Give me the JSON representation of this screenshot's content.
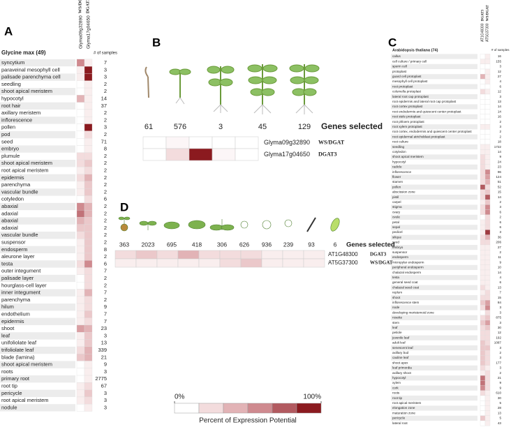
{
  "legend": {
    "ticks": [
      {
        "value": 0,
        "label": "0%"
      },
      {
        "value": 100,
        "label": "100%"
      }
    ],
    "title": "Percent of Expression Potential",
    "colors": [
      "#ffffff",
      "#f3dcdd",
      "#e2b3b6",
      "#cf8a8f",
      "#b25a60",
      "#8b1a1f"
    ]
  },
  "panel_a": {
    "label": "A",
    "title": "Glycine max (49)",
    "samples_header": "# of samples",
    "columns": [
      {
        "gene": "Glyma09g32890",
        "name": "WS/DGAT"
      },
      {
        "gene": "Glyma17g04650",
        "name": "DGAT3"
      }
    ],
    "rows": [
      {
        "tissue": "syncytium",
        "samples": 7,
        "values": [
          60,
          10
        ]
      },
      {
        "tissue": "paraveinal mesophyll cell",
        "samples": 3,
        "values": [
          10,
          100
        ]
      },
      {
        "tissue": "palisade parenchyma cell",
        "samples": 3,
        "values": [
          10,
          100
        ]
      },
      {
        "tissue": "seedling",
        "samples": 2,
        "values": [
          0,
          10
        ]
      },
      {
        "tissue": "shoot apical meristem",
        "samples": 2,
        "values": [
          0,
          10
        ]
      },
      {
        "tissue": "hypocotyl",
        "samples": 14,
        "values": [
          40,
          10
        ]
      },
      {
        "tissue": "root hair",
        "samples": 37,
        "values": [
          0,
          10
        ]
      },
      {
        "tissue": "axillary meristem",
        "samples": 2,
        "values": [
          0,
          10
        ]
      },
      {
        "tissue": "inflorescence",
        "samples": 2,
        "values": [
          0,
          10
        ]
      },
      {
        "tissue": "pollen",
        "samples": 3,
        "values": [
          0,
          100
        ]
      },
      {
        "tissue": "pod",
        "samples": 2,
        "values": [
          0,
          20
        ]
      },
      {
        "tissue": "seed",
        "samples": 71,
        "values": [
          0,
          10
        ]
      },
      {
        "tissue": "embryo",
        "samples": 8,
        "values": [
          0,
          10
        ]
      },
      {
        "tissue": "plumule",
        "samples": 2,
        "values": [
          20,
          20
        ]
      },
      {
        "tissue": "shoot apical meristem",
        "samples": 2,
        "values": [
          20,
          30
        ]
      },
      {
        "tissue": "root apical meristem",
        "samples": 2,
        "values": [
          10,
          20
        ]
      },
      {
        "tissue": "epidermis",
        "samples": 2,
        "values": [
          20,
          40
        ]
      },
      {
        "tissue": "parenchyma",
        "samples": 2,
        "values": [
          10,
          30
        ]
      },
      {
        "tissue": "vascular bundle",
        "samples": 2,
        "values": [
          10,
          30
        ]
      },
      {
        "tissue": "cotyledon",
        "samples": 6,
        "values": [
          0,
          20
        ]
      },
      {
        "tissue": "abaxial",
        "samples": 2,
        "values": [
          60,
          40
        ]
      },
      {
        "tissue": "adaxial",
        "samples": 2,
        "values": [
          70,
          40
        ]
      },
      {
        "tissue": "abaxial",
        "samples": 2,
        "values": [
          40,
          30
        ]
      },
      {
        "tissue": "adaxial",
        "samples": 2,
        "values": [
          30,
          30
        ]
      },
      {
        "tissue": "vascular bundle",
        "samples": 2,
        "values": [
          20,
          30
        ]
      },
      {
        "tissue": "suspensor",
        "samples": 2,
        "values": [
          10,
          30
        ]
      },
      {
        "tissue": "endosperm",
        "samples": 8,
        "values": [
          10,
          30
        ]
      },
      {
        "tissue": "aleurone layer",
        "samples": 2,
        "values": [
          10,
          30
        ]
      },
      {
        "tissue": "testa",
        "samples": 6,
        "values": [
          20,
          60
        ]
      },
      {
        "tissue": "outer integument",
        "samples": 7,
        "values": [
          10,
          20
        ]
      },
      {
        "tissue": "palisade layer",
        "samples": 2,
        "values": [
          0,
          20
        ]
      },
      {
        "tissue": "hourglass-cell layer",
        "samples": 2,
        "values": [
          0,
          20
        ]
      },
      {
        "tissue": "inner integument",
        "samples": 7,
        "values": [
          10,
          40
        ]
      },
      {
        "tissue": "parenchyma",
        "samples": 2,
        "values": [
          10,
          20
        ]
      },
      {
        "tissue": "hilum",
        "samples": 9,
        "values": [
          10,
          20
        ]
      },
      {
        "tissue": "endothelium",
        "samples": 7,
        "values": [
          10,
          30
        ]
      },
      {
        "tissue": "epidermis",
        "samples": 7,
        "values": [
          10,
          20
        ]
      },
      {
        "tissue": "shoot",
        "samples": 23,
        "values": [
          50,
          40
        ]
      },
      {
        "tissue": "leaf",
        "samples": 3,
        "values": [
          10,
          30
        ]
      },
      {
        "tissue": "unifoliolate leaf",
        "samples": 13,
        "values": [
          10,
          30
        ]
      },
      {
        "tissue": "trifoliolate leaf",
        "samples": 339,
        "values": [
          20,
          40
        ]
      },
      {
        "tissue": "blade (lamina)",
        "samples": 21,
        "values": [
          30,
          40
        ]
      },
      {
        "tissue": "shoot apical meristem",
        "samples": 9,
        "values": [
          0,
          10
        ]
      },
      {
        "tissue": "roots",
        "samples": 3,
        "values": [
          0,
          10
        ]
      },
      {
        "tissue": "primary root",
        "samples": 2775,
        "values": [
          0,
          10
        ]
      },
      {
        "tissue": "root tip",
        "samples": 67,
        "values": [
          10,
          20
        ]
      },
      {
        "tissue": "pericycle",
        "samples": 3,
        "values": [
          10,
          30
        ]
      },
      {
        "tissue": "root apical meristem",
        "samples": 3,
        "values": [
          10,
          20
        ]
      },
      {
        "tissue": "nodule",
        "samples": 3,
        "values": [
          0,
          10
        ]
      }
    ]
  },
  "panel_b": {
    "label": "B",
    "genes_selected_label": "Genes selected",
    "genes_selected": [
      61,
      576,
      3,
      45,
      129
    ],
    "rows": [
      {
        "gene": "Glyma09g32890",
        "name": "WS/DGAT",
        "values": [
          0,
          5,
          0,
          0,
          0
        ]
      },
      {
        "gene": "Glyma17g04650",
        "name": "DGAT3",
        "values": [
          0,
          20,
          100,
          5,
          0
        ]
      }
    ]
  },
  "panel_d": {
    "label": "D",
    "genes_selected_label": "Genes selected",
    "genes_selected": [
      363,
      2023,
      695,
      418,
      306,
      626,
      936,
      239,
      93,
      6
    ],
    "rows": [
      {
        "gene": "AT1G48300",
        "name": "DGAT3",
        "values": [
          20,
          30,
          20,
          40,
          20,
          20,
          20,
          10,
          10,
          10
        ]
      },
      {
        "gene": "AT5G37300",
        "name": "WS/DGAT",
        "values": [
          10,
          10,
          10,
          10,
          10,
          20,
          30,
          10,
          10,
          10
        ]
      }
    ]
  },
  "panel_c": {
    "label": "C",
    "title": "Arabidopsis thaliana (74)",
    "samples_header": "# of samples",
    "columns": [
      {
        "gene": "AT1G48300",
        "name": "DGAT3"
      },
      {
        "gene": "AT5G37300",
        "name": "WS/DGAT"
      }
    ],
    "rows": [
      {
        "tissue": "callus",
        "samples": 16,
        "values": [
          0,
          10
        ]
      },
      {
        "tissue": "cell culture / primary cell",
        "samples": 155,
        "values": [
          10,
          10
        ]
      },
      {
        "tissue": "sperm cell",
        "samples": 3,
        "values": [
          0,
          0
        ]
      },
      {
        "tissue": "protoplast",
        "samples": 12,
        "values": [
          0,
          10
        ]
      },
      {
        "tissue": "guard cell protoplast",
        "samples": 27,
        "values": [
          40,
          10
        ]
      },
      {
        "tissue": "mesophyll cell protoplast",
        "samples": 4,
        "values": [
          0,
          10
        ]
      },
      {
        "tissue": "root protoplast",
        "samples": 6,
        "values": [
          0,
          0
        ]
      },
      {
        "tissue": "columella protoplast",
        "samples": 12,
        "values": [
          20,
          10
        ]
      },
      {
        "tissue": "lateral root cap protoplast",
        "samples": 3,
        "values": [
          0,
          0
        ]
      },
      {
        "tissue": "root epidermis and lateral root cap protoplast",
        "samples": 13,
        "values": [
          0,
          0
        ]
      },
      {
        "tissue": "root cortex protoplast",
        "samples": 14,
        "values": [
          0,
          0
        ]
      },
      {
        "tissue": "root endodermis and quiescent center protoplast",
        "samples": 14,
        "values": [
          0,
          0
        ]
      },
      {
        "tissue": "root stele protoplast",
        "samples": 16,
        "values": [
          0,
          0
        ]
      },
      {
        "tissue": "root phloem protoplast",
        "samples": 2,
        "values": [
          0,
          0
        ]
      },
      {
        "tissue": "root xylem protoplast",
        "samples": 3,
        "values": [
          10,
          10
        ]
      },
      {
        "tissue": "root cortex, endodermis and quiescent center protoplast",
        "samples": 2,
        "values": [
          0,
          0
        ]
      },
      {
        "tissue": "root epidermal atrichoblast protoplast",
        "samples": 2,
        "values": [
          0,
          0
        ]
      },
      {
        "tissue": "root culture",
        "samples": 18,
        "values": [
          0,
          0
        ]
      },
      {
        "tissue": "seedling",
        "samples": 1722,
        "values": [
          10,
          10
        ]
      },
      {
        "tissue": "cotyledon",
        "samples": 14,
        "values": [
          10,
          10
        ]
      },
      {
        "tissue": "shoot apical meristem",
        "samples": 9,
        "values": [
          20,
          10
        ]
      },
      {
        "tissue": "hypocotyl",
        "samples": 24,
        "values": [
          20,
          10
        ]
      },
      {
        "tissue": "radicle",
        "samples": 23,
        "values": [
          20,
          10
        ]
      },
      {
        "tissue": "inflorescence",
        "samples": 96,
        "values": [
          20,
          60
        ]
      },
      {
        "tissue": "flower",
        "samples": 124,
        "values": [
          20,
          50
        ]
      },
      {
        "tissue": "stamen",
        "samples": 51,
        "values": [
          20,
          40
        ]
      },
      {
        "tissue": "pollen",
        "samples": 52,
        "values": [
          80,
          20
        ]
      },
      {
        "tissue": "abscission zone",
        "samples": 15,
        "values": [
          20,
          30
        ]
      },
      {
        "tissue": "pistil",
        "samples": 14,
        "values": [
          20,
          80
        ]
      },
      {
        "tissue": "carpel",
        "samples": 2,
        "values": [
          10,
          30
        ]
      },
      {
        "tissue": "stigma",
        "samples": 3,
        "values": [
          20,
          60
        ]
      },
      {
        "tissue": "ovary",
        "samples": 6,
        "values": [
          20,
          60
        ]
      },
      {
        "tissue": "ovule",
        "samples": 2,
        "values": [
          0,
          20
        ]
      },
      {
        "tissue": "petal",
        "samples": 6,
        "values": [
          10,
          20
        ]
      },
      {
        "tissue": "sepal",
        "samples": 6,
        "values": [
          10,
          20
        ]
      },
      {
        "tissue": "pedicel",
        "samples": 3,
        "values": [
          10,
          90
        ]
      },
      {
        "tissue": "silique",
        "samples": 36,
        "values": [
          20,
          40
        ]
      },
      {
        "tissue": "seed",
        "samples": 206,
        "values": [
          20,
          20
        ]
      },
      {
        "tissue": "embryo",
        "samples": 27,
        "values": [
          10,
          10
        ]
      },
      {
        "tissue": "suspensor",
        "samples": 2,
        "values": [
          10,
          10
        ]
      },
      {
        "tissue": "endosperm",
        "samples": 11,
        "values": [
          10,
          10
        ]
      },
      {
        "tissue": "micropylar endosperm",
        "samples": 9,
        "values": [
          10,
          10
        ]
      },
      {
        "tissue": "peripheral endosperm",
        "samples": 10,
        "values": [
          10,
          10
        ]
      },
      {
        "tissue": "chalazal endosperm",
        "samples": 14,
        "values": [
          10,
          10
        ]
      },
      {
        "tissue": "testa",
        "samples": 4,
        "values": [
          10,
          10
        ]
      },
      {
        "tissue": "general seed coat",
        "samples": 6,
        "values": [
          10,
          10
        ]
      },
      {
        "tissue": "chalazal seed coat",
        "samples": 13,
        "values": [
          20,
          10
        ]
      },
      {
        "tissue": "replum",
        "samples": 7,
        "values": [
          10,
          20
        ]
      },
      {
        "tissue": "shoot",
        "samples": 15,
        "values": [
          20,
          20
        ]
      },
      {
        "tissue": "inflorescence stem",
        "samples": 84,
        "values": [
          30,
          50
        ]
      },
      {
        "tissue": "node",
        "samples": 3,
        "values": [
          20,
          60
        ]
      },
      {
        "tissue": "developing meristemoid zone",
        "samples": 3,
        "values": [
          0,
          20
        ]
      },
      {
        "tissue": "rosette",
        "samples": 875,
        "values": [
          20,
          30
        ]
      },
      {
        "tissue": "stem",
        "samples": 3,
        "values": [
          30,
          50
        ]
      },
      {
        "tissue": "leaf",
        "samples": 30,
        "values": [
          20,
          30
        ]
      },
      {
        "tissue": "petiole",
        "samples": 12,
        "values": [
          20,
          20
        ]
      },
      {
        "tissue": "juvenile leaf",
        "samples": 192,
        "values": [
          20,
          20
        ]
      },
      {
        "tissue": "adult leaf",
        "samples": 1087,
        "values": [
          30,
          20
        ]
      },
      {
        "tissue": "senescent leaf",
        "samples": 3,
        "values": [
          30,
          30
        ]
      },
      {
        "tissue": "axillary bud",
        "samples": 2,
        "values": [
          30,
          20
        ]
      },
      {
        "tissue": "cauline leaf",
        "samples": 3,
        "values": [
          30,
          20
        ]
      },
      {
        "tissue": "shoot apex",
        "samples": 177,
        "values": [
          30,
          20
        ]
      },
      {
        "tissue": "leaf primordia",
        "samples": 3,
        "values": [
          20,
          10
        ]
      },
      {
        "tissue": "axillary shoot",
        "samples": 2,
        "values": [
          10,
          20
        ]
      },
      {
        "tissue": "hypocotyl",
        "samples": 21,
        "values": [
          70,
          20
        ]
      },
      {
        "tissue": "xylem",
        "samples": 9,
        "values": [
          70,
          20
        ]
      },
      {
        "tissue": "cork",
        "samples": 9,
        "values": [
          60,
          20
        ]
      },
      {
        "tissue": "roots",
        "samples": 610,
        "values": [
          20,
          10
        ]
      },
      {
        "tissue": "root tip",
        "samples": 30,
        "values": [
          0,
          10
        ]
      },
      {
        "tissue": "root apical meristem",
        "samples": 5,
        "values": [
          0,
          10
        ]
      },
      {
        "tissue": "elongation zone",
        "samples": 28,
        "values": [
          0,
          10
        ]
      },
      {
        "tissue": "maturation zone",
        "samples": 13,
        "values": [
          0,
          10
        ]
      },
      {
        "tissue": "pericycle",
        "samples": 5,
        "values": [
          30,
          10
        ]
      },
      {
        "tissue": "lateral root",
        "samples": 43,
        "values": [
          0,
          10
        ]
      }
    ]
  }
}
